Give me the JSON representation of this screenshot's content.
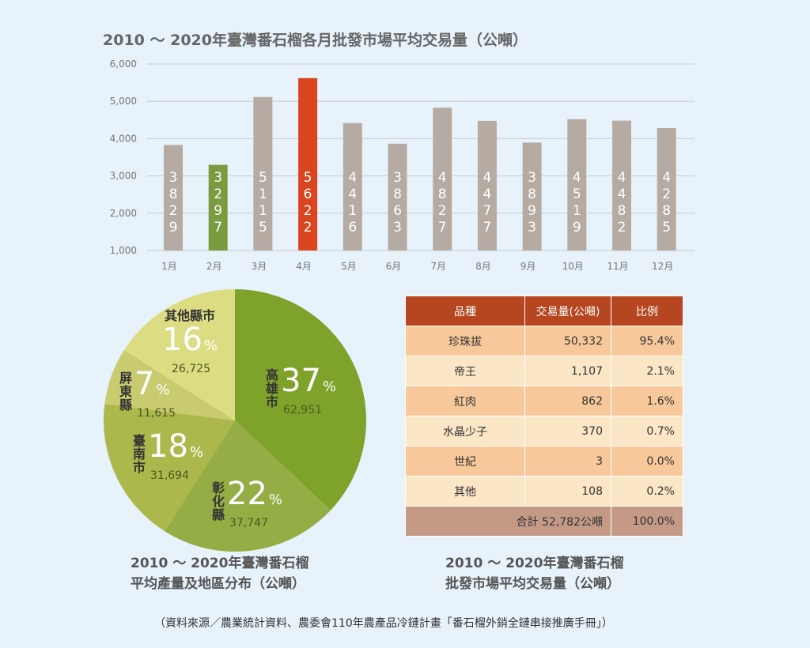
{
  "chart_data": [
    {
      "type": "bar",
      "title": "2010 ～ 2020年臺灣番石榴各月批發市場平均交易量（公噸）",
      "categories": [
        "1月",
        "2月",
        "3月",
        "4月",
        "5月",
        "6月",
        "7月",
        "8月",
        "9月",
        "10月",
        "11月",
        "12月"
      ],
      "values": [
        3829,
        3297,
        5115,
        5622,
        4416,
        3863,
        4827,
        4477,
        3893,
        4519,
        4482,
        4285
      ],
      "ylim": [
        1000,
        6000
      ],
      "yticks": [
        "1,000",
        "2,000",
        "3,000",
        "4,000",
        "5,000",
        "6,000"
      ],
      "grid": true,
      "colors": {
        "default": "#b6aba2",
        "min": "#7b9b40",
        "max": "#d8451e"
      }
    },
    {
      "type": "pie",
      "title": "2010 ～ 2020年臺灣番石榴\n平均產量及地區分布（公噸）",
      "slices": [
        {
          "label": "高雄市",
          "percent": 37,
          "value": "62,951",
          "color": "#7fa22b"
        },
        {
          "label": "彰化縣",
          "percent": 22,
          "value": "37,747",
          "color": "#94ad44"
        },
        {
          "label": "臺南市",
          "percent": 18,
          "value": "31,694",
          "color": "#adb84c"
        },
        {
          "label": "屏東縣",
          "percent": 7,
          "value": "11,615",
          "color": "#c9cb70"
        },
        {
          "label": "其他縣市",
          "percent": 16,
          "value": "26,725",
          "color": "#dcdc82"
        }
      ]
    },
    {
      "type": "table",
      "title": "2010 ～ 2020年臺灣番石榴\n批發市場平均交易量（公噸）",
      "headers": [
        "品種",
        "交易量(公噸)",
        "比例"
      ],
      "rows": [
        [
          "珍珠拔",
          "50,332",
          "95.4%"
        ],
        [
          "帝王",
          "1,107",
          "2.1%"
        ],
        [
          "紅肉",
          "862",
          "1.6%"
        ],
        [
          "水晶少子",
          "370",
          "0.7%"
        ],
        [
          "世紀",
          "3",
          "0.0%"
        ],
        [
          "其他",
          "108",
          "0.2%"
        ]
      ],
      "total": {
        "label": "合計 52,782公噸",
        "percent": "100.0%"
      }
    }
  ],
  "pie_caption": [
    "2010 ～ 2020年臺灣番石榴",
    "平均產量及地區分布（公噸）"
  ],
  "table_caption": [
    "2010 ～ 2020年臺灣番石榴",
    "批發市場平均交易量（公噸）"
  ],
  "source": "（資料來源／農業統計資料、農委會110年農產品冷鏈計畫「番石榴外銷全鏈串接推廣手冊」）"
}
